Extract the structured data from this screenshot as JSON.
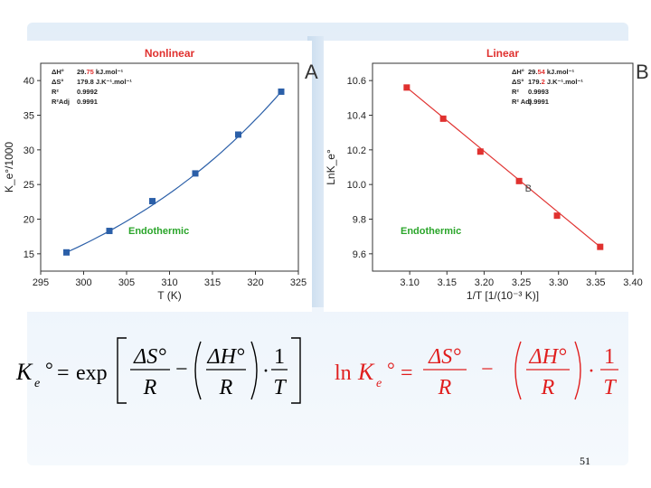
{
  "page_number": "51",
  "panel_letters": {
    "left": "A",
    "right": "B"
  },
  "chart_data": [
    {
      "type": "scatter",
      "title": "Nonlinear",
      "title_color": "#e0312f",
      "xlabel": "T (K)",
      "ylabel": "K_e°/1000",
      "xlim": [
        295,
        325
      ],
      "ylim": [
        12.5,
        42.5
      ],
      "xticks": [
        295,
        300,
        305,
        310,
        315,
        320,
        325
      ],
      "yticks": [
        15,
        20,
        25,
        30,
        35,
        40
      ],
      "series": [
        {
          "marker_color": "#2b5fa8",
          "line_color": "#2b5fa8",
          "x": [
            298,
            303,
            308,
            313,
            318,
            323
          ],
          "y": [
            15.2,
            18.3,
            22.6,
            26.6,
            32.2,
            38.4
          ]
        }
      ],
      "annotation": "Endothermic",
      "annotation_color": "#2aa52a",
      "stats": [
        {
          "label": "ΔH°",
          "value_pre": "29.",
          "value_hl": "75",
          "value_post": " kJ.mol⁻¹"
        },
        {
          "label": "ΔS°",
          "value_pre": "179.8 J.K⁻¹.mol⁻¹",
          "value_hl": "",
          "value_post": ""
        },
        {
          "label": "R²",
          "value_pre": "0.9992",
          "value_hl": "",
          "value_post": ""
        },
        {
          "label": "R²Adj",
          "value_pre": "0.9991",
          "value_hl": "",
          "value_post": ""
        }
      ]
    },
    {
      "type": "line",
      "title": "Linear",
      "title_color": "#e0312f",
      "xlabel": "1/T   [1/(10⁻³ K)]",
      "ylabel": "LnK_e°",
      "xlim": [
        3.05,
        3.4
      ],
      "ylim": [
        9.5,
        10.7
      ],
      "xticks": [
        3.1,
        3.15,
        3.2,
        3.25,
        3.3,
        3.35,
        3.4
      ],
      "xtick_labels": [
        "3.10",
        "3.15",
        "3.20",
        "3.25",
        "3.30",
        "3.35",
        "3.40"
      ],
      "yticks": [
        9.6,
        9.8,
        10.0,
        10.2,
        10.4,
        10.6
      ],
      "ytick_labels": [
        "9.6",
        "9.8",
        "10.0",
        "10.2",
        "10.4",
        "10.6"
      ],
      "series": [
        {
          "marker_color": "#e0312f",
          "line_color": "#e0312f",
          "x": [
            3.096,
            3.145,
            3.195,
            3.247,
            3.298,
            3.356
          ],
          "y": [
            10.56,
            10.38,
            10.19,
            10.02,
            9.82,
            9.64
          ]
        }
      ],
      "point_label": {
        "text": "B",
        "x": 3.255,
        "y": 9.96
      },
      "annotation": "Endothermic",
      "annotation_color": "#2aa52a",
      "stats": [
        {
          "label": "ΔH°",
          "value_pre": "29.",
          "value_hl": "54",
          "value_post": " kJ.mol⁻¹"
        },
        {
          "label": "ΔS°",
          "value_pre": "179.",
          "value_hl": "2",
          "value_post": " J.K⁻¹.mol⁻¹"
        },
        {
          "label": "R²",
          "value_pre": "0.9993",
          "value_hl": "",
          "value_post": ""
        },
        {
          "label": "R² Adj",
          "value_pre": "0.9991",
          "value_hl": "",
          "value_post": ""
        }
      ]
    }
  ],
  "equations": {
    "left": {
      "lhs": "K",
      "lhs_sub": "e",
      "lhs_deg": "°",
      "equals": "=",
      "func": "exp",
      "num1": "ΔS°",
      "den1": "R",
      "minus": "−",
      "num2": "ΔH°",
      "den2": "R",
      "dot": "·",
      "num3": "1",
      "den3": "T"
    },
    "right": {
      "lhs_ln": "ln",
      "lhs": "K",
      "lhs_sub": "e",
      "lhs_deg": "°",
      "equals": "=",
      "num1": "ΔS°",
      "den1": "R",
      "minus": "−",
      "num2": "ΔH°",
      "den2": "R",
      "dot": "·",
      "num3": "1",
      "den3": "T",
      "color": "#e01e1e"
    }
  }
}
